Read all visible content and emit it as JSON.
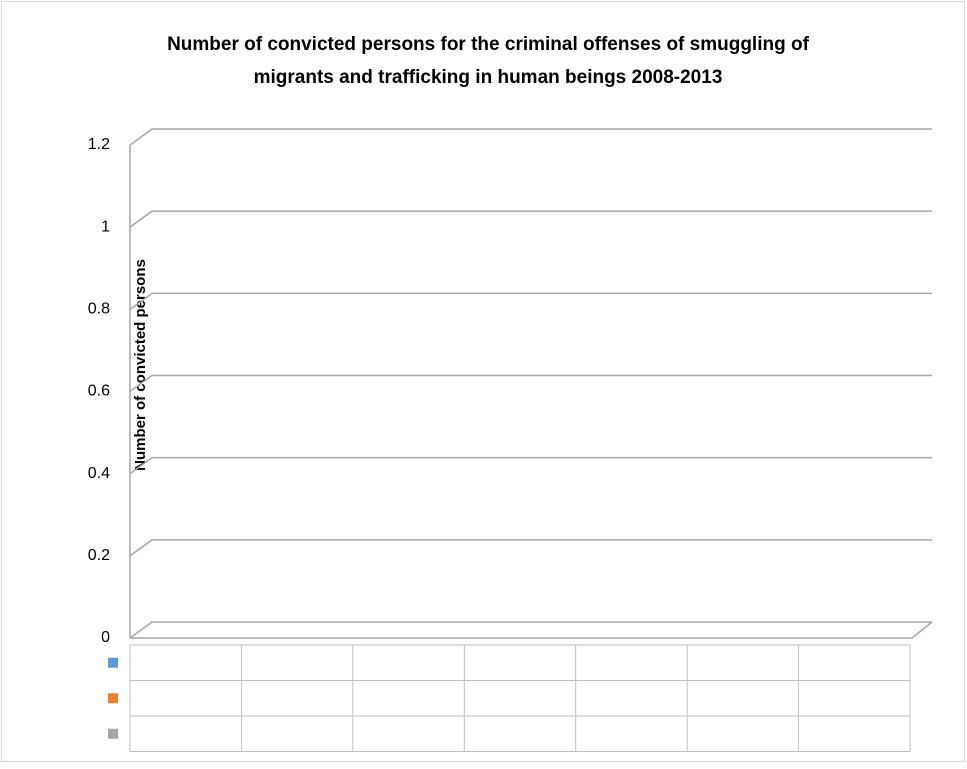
{
  "chart_data": {
    "type": "bar3d",
    "title": [
      "Number of convicted persons for the criminal offenses of smuggling of",
      "migrants and trafficking in human beings 2008-2013"
    ],
    "y_label": "Number of convicted persons",
    "categories": [
      null,
      null,
      null,
      null,
      null,
      null,
      null
    ],
    "series": [
      {
        "color": "#5b9bd5"
      },
      {
        "color": "#ed7d31"
      },
      {
        "color": "#a5a5a5"
      }
    ],
    "ylim": [
      0,
      1.2
    ],
    "yticks": [
      0,
      0.2,
      0.4,
      0.6,
      0.8,
      1,
      1.2
    ],
    "grid": true
  }
}
